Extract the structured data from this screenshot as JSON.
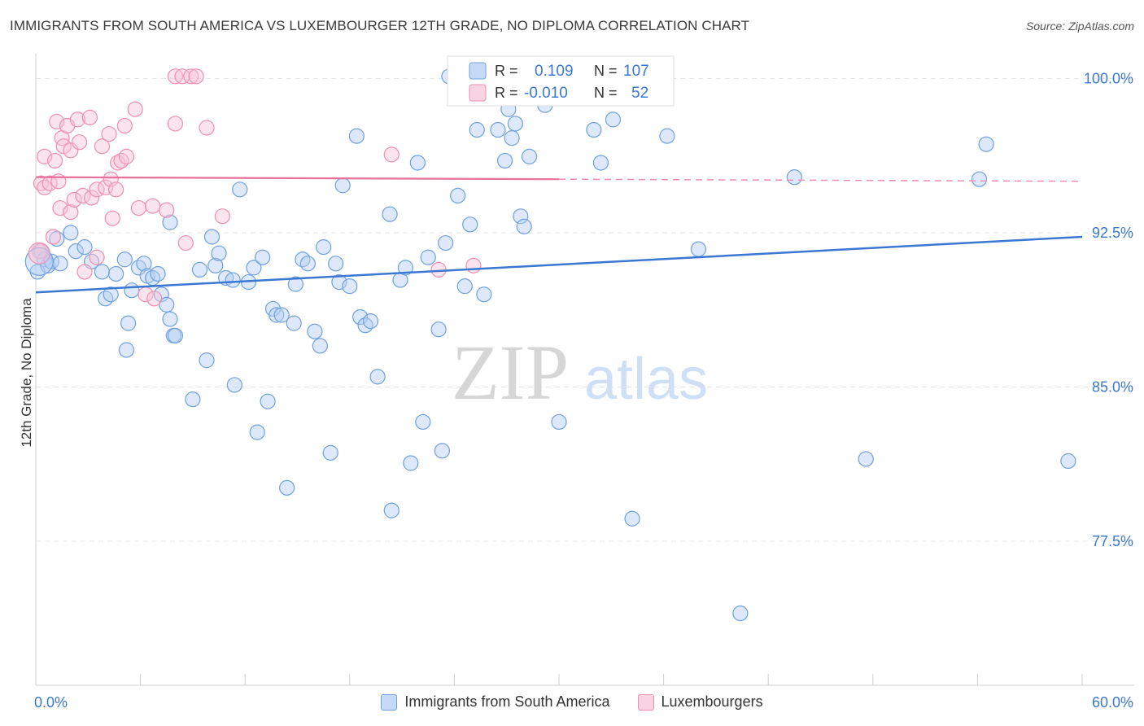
{
  "header": {
    "title": "IMMIGRANTS FROM SOUTH AMERICA VS LUXEMBOURGER 12TH GRADE, NO DIPLOMA CORRELATION CHART",
    "source": "Source: ZipAtlas.com"
  },
  "watermark": {
    "zip": "ZIP",
    "atlas": "atlas"
  },
  "stats_legend": [
    {
      "r_label": "R =",
      "r_value": "0.109",
      "n_label": "N =",
      "n_value": "107",
      "color": "#6fa0e0"
    },
    {
      "r_label": "R =",
      "r_value": "-0.010",
      "n_label": "N =",
      "n_value": "52",
      "color": "#ee8fb0"
    }
  ],
  "chart_data": {
    "type": "scatter",
    "title": "IMMIGRANTS FROM SOUTH AMERICA VS LUXEMBOURGER 12TH GRADE, NO DIPLOMA CORRELATION CHART",
    "xlabel": "",
    "ylabel": "12th Grade, No Diploma",
    "xlim": [
      0,
      60
    ],
    "ylim": [
      70.5,
      101.2
    ],
    "x_tick_labels": [
      "0.0%",
      "60.0%"
    ],
    "y_ticks": [
      77.5,
      85.0,
      92.5,
      100.0
    ],
    "y_tick_labels": [
      "77.5%",
      "85.0%",
      "92.5%",
      "100.0%"
    ],
    "grid": true,
    "legend_placement": "bottom",
    "series": [
      {
        "name": "Immigrants from South America",
        "color": "#6fa0e0",
        "trend": {
          "x": [
            0,
            60
          ],
          "y": [
            89.6,
            92.3
          ]
        },
        "points": [
          [
            0.1,
            90.6
          ],
          [
            0.3,
            91.6
          ],
          [
            0.5,
            91.2
          ],
          [
            0.7,
            90.9
          ],
          [
            0.9,
            91.1
          ],
          [
            1.2,
            92.2
          ],
          [
            1.4,
            91.0
          ],
          [
            2.0,
            92.5
          ],
          [
            2.3,
            91.6
          ],
          [
            2.8,
            91.8
          ],
          [
            3.2,
            91.1
          ],
          [
            3.8,
            90.6
          ],
          [
            4.6,
            90.5
          ],
          [
            5.1,
            91.2
          ],
          [
            4.0,
            89.3
          ],
          [
            4.3,
            89.5
          ],
          [
            5.2,
            86.8
          ],
          [
            5.3,
            88.1
          ],
          [
            5.5,
            89.7
          ],
          [
            5.9,
            90.8
          ],
          [
            6.2,
            91.0
          ],
          [
            6.4,
            90.4
          ],
          [
            6.7,
            90.3
          ],
          [
            7.0,
            90.5
          ],
          [
            7.2,
            89.5
          ],
          [
            7.5,
            89.0
          ],
          [
            7.7,
            88.3
          ],
          [
            7.9,
            87.5
          ],
          [
            8.0,
            87.5
          ],
          [
            7.7,
            93.0
          ],
          [
            9.0,
            84.4
          ],
          [
            9.4,
            90.7
          ],
          [
            9.8,
            86.3
          ],
          [
            10.1,
            92.3
          ],
          [
            10.3,
            90.9
          ],
          [
            10.5,
            91.5
          ],
          [
            10.9,
            90.3
          ],
          [
            11.3,
            90.2
          ],
          [
            11.4,
            85.1
          ],
          [
            11.7,
            94.6
          ],
          [
            12.2,
            90.1
          ],
          [
            12.5,
            90.8
          ],
          [
            12.7,
            82.8
          ],
          [
            13.0,
            91.3
          ],
          [
            13.3,
            84.3
          ],
          [
            13.6,
            88.8
          ],
          [
            13.8,
            88.5
          ],
          [
            14.1,
            88.5
          ],
          [
            14.4,
            80.1
          ],
          [
            14.8,
            88.1
          ],
          [
            14.9,
            90.0
          ],
          [
            15.3,
            91.2
          ],
          [
            15.6,
            91.0
          ],
          [
            16.0,
            87.7
          ],
          [
            16.3,
            87.0
          ],
          [
            16.5,
            91.8
          ],
          [
            16.9,
            81.8
          ],
          [
            17.2,
            91.0
          ],
          [
            17.4,
            90.1
          ],
          [
            17.6,
            94.8
          ],
          [
            18.0,
            89.9
          ],
          [
            18.4,
            97.2
          ],
          [
            18.6,
            88.4
          ],
          [
            18.9,
            88.0
          ],
          [
            19.2,
            88.2
          ],
          [
            19.6,
            85.5
          ],
          [
            20.3,
            93.4
          ],
          [
            20.4,
            79.0
          ],
          [
            20.9,
            90.2
          ],
          [
            21.2,
            90.8
          ],
          [
            21.5,
            81.3
          ],
          [
            21.9,
            95.9
          ],
          [
            22.2,
            83.3
          ],
          [
            22.5,
            91.3
          ],
          [
            23.1,
            87.8
          ],
          [
            23.3,
            81.9
          ],
          [
            23.5,
            92.0
          ],
          [
            23.7,
            100.1
          ],
          [
            24.2,
            94.3
          ],
          [
            24.6,
            89.9
          ],
          [
            24.9,
            92.9
          ],
          [
            25.3,
            97.5
          ],
          [
            25.7,
            89.5
          ],
          [
            26.5,
            97.5
          ],
          [
            26.9,
            96.0
          ],
          [
            27.1,
            98.5
          ],
          [
            27.3,
            97.1
          ],
          [
            27.5,
            97.8
          ],
          [
            27.8,
            93.3
          ],
          [
            28.0,
            92.8
          ],
          [
            28.3,
            96.2
          ],
          [
            29.2,
            98.7
          ],
          [
            29.4,
            99.2
          ],
          [
            30.0,
            83.3
          ],
          [
            31.0,
            99.7
          ],
          [
            32.0,
            97.5
          ],
          [
            32.4,
            95.9
          ],
          [
            33.1,
            98.0
          ],
          [
            34.2,
            78.6
          ],
          [
            34.9,
            100.1
          ],
          [
            36.2,
            97.2
          ],
          [
            38.0,
            91.7
          ],
          [
            40.4,
            74.0
          ],
          [
            43.5,
            95.2
          ],
          [
            47.6,
            81.5
          ],
          [
            54.1,
            95.1
          ],
          [
            54.5,
            96.8
          ],
          [
            59.2,
            81.4
          ]
        ]
      },
      {
        "name": "Luxembourgers",
        "color": "#ee8fb0",
        "trend": {
          "x": [
            0,
            60
          ],
          "y": [
            95.2,
            95.0
          ],
          "solid_until": 30
        },
        "points": [
          [
            0.2,
            91.6
          ],
          [
            0.3,
            94.9
          ],
          [
            0.5,
            94.7
          ],
          [
            0.5,
            96.2
          ],
          [
            0.8,
            94.9
          ],
          [
            1.0,
            92.3
          ],
          [
            1.1,
            96.0
          ],
          [
            1.2,
            97.9
          ],
          [
            1.3,
            95.0
          ],
          [
            1.4,
            93.7
          ],
          [
            1.5,
            97.1
          ],
          [
            1.6,
            96.7
          ],
          [
            1.8,
            97.7
          ],
          [
            2.0,
            96.5
          ],
          [
            2.0,
            93.5
          ],
          [
            2.2,
            94.1
          ],
          [
            2.4,
            98.0
          ],
          [
            2.5,
            96.9
          ],
          [
            2.7,
            94.3
          ],
          [
            2.8,
            90.6
          ],
          [
            3.1,
            98.1
          ],
          [
            3.2,
            94.2
          ],
          [
            3.5,
            94.6
          ],
          [
            3.5,
            91.3
          ],
          [
            3.8,
            96.7
          ],
          [
            4.0,
            94.7
          ],
          [
            4.2,
            97.3
          ],
          [
            4.3,
            95.1
          ],
          [
            4.4,
            93.2
          ],
          [
            4.6,
            94.6
          ],
          [
            4.7,
            95.9
          ],
          [
            4.9,
            96.0
          ],
          [
            5.1,
            97.7
          ],
          [
            5.2,
            96.2
          ],
          [
            5.7,
            98.5
          ],
          [
            5.9,
            93.7
          ],
          [
            6.3,
            89.5
          ],
          [
            6.7,
            93.8
          ],
          [
            6.8,
            89.3
          ],
          [
            7.5,
            93.6
          ],
          [
            8.0,
            100.1
          ],
          [
            8.0,
            97.8
          ],
          [
            8.4,
            100.1
          ],
          [
            8.6,
            92.0
          ],
          [
            8.9,
            100.1
          ],
          [
            9.2,
            100.1
          ],
          [
            9.8,
            97.6
          ],
          [
            10.7,
            93.3
          ],
          [
            20.4,
            96.3
          ],
          [
            23.1,
            90.7
          ],
          [
            25.1,
            90.9
          ],
          [
            26.8,
            100.0
          ]
        ]
      }
    ]
  },
  "bottom_legend": [
    {
      "label": "Immigrants from South America",
      "fill": "#c6daf7",
      "stroke": "#6fa0e0"
    },
    {
      "label": "Luxembourgers",
      "fill": "#f9d3e1",
      "stroke": "#ee8fb0"
    }
  ]
}
